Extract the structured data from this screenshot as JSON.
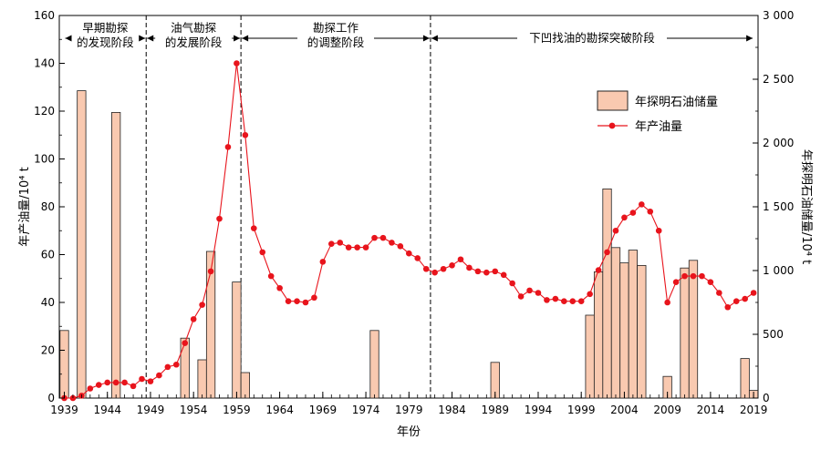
{
  "chart_data": {
    "type": "bar+line",
    "xlabel": "年份",
    "y_left_label": "年产油量/10⁴ t",
    "y_right_label": "年探明石油储量/10⁴ t",
    "y_left_lim": [
      0,
      160
    ],
    "y_right_lim": [
      0,
      3000
    ],
    "x_lim": [
      1939,
      2019
    ],
    "x_ticks": [
      "1939",
      "1944",
      "1949",
      "1954",
      "1959",
      "1964",
      "1969",
      "1974",
      "1979",
      "1984",
      "1989",
      "1994",
      "1999",
      "2004",
      "2009",
      "2014",
      "2019"
    ],
    "y_left_ticks": [
      "0",
      "20",
      "40",
      "60",
      "80",
      "100",
      "120",
      "140",
      "160"
    ],
    "y_right_ticks": [
      "0",
      "500",
      "1 000",
      "1 500",
      "2 000",
      "2 500",
      "3 000"
    ],
    "legend": {
      "position": "top-right",
      "bar_label": "年探明石油储量",
      "line_label": "年产油量"
    },
    "colors": {
      "bar_fill": "#f9c9b0",
      "bar_stroke": "#222222",
      "line": "#e8141c"
    },
    "phases": [
      {
        "line1": "早期勘探",
        "line2": "的发现阶段",
        "from": 1939,
        "to": 1948.5
      },
      {
        "line1": "油气勘探",
        "line2": "的发展阶段",
        "from": 1948.5,
        "to": 1959.5
      },
      {
        "line1": "勘探工作",
        "line2": "的调整阶段",
        "from": 1959.5,
        "to": 1981.5
      },
      {
        "line1": "下凹找油的勘探突破阶段",
        "line2": "",
        "from": 1981.5,
        "to": 2019
      }
    ],
    "phase_dividers": [
      1948.5,
      1959.5,
      1981.5
    ],
    "reserves_series": {
      "name": "年探明石油储量",
      "years": [
        1939,
        1941,
        1945,
        1953,
        1955,
        1956,
        1959,
        1960,
        1975,
        1989,
        2000,
        2001,
        2002,
        2003,
        2004,
        2005,
        2006,
        2009,
        2011,
        2012,
        2018,
        2019
      ],
      "values": [
        530,
        2410,
        2240,
        470,
        300,
        1150,
        910,
        200,
        530,
        280,
        650,
        990,
        1640,
        1180,
        1060,
        1160,
        1040,
        170,
        1020,
        1080,
        310,
        60
      ]
    },
    "production_series": {
      "name": "年产油量",
      "years": [
        1939,
        1940,
        1941,
        1942,
        1943,
        1944,
        1945,
        1946,
        1947,
        1948,
        1949,
        1950,
        1951,
        1952,
        1953,
        1954,
        1955,
        1956,
        1957,
        1958,
        1959,
        1960,
        1961,
        1962,
        1963,
        1964,
        1965,
        1966,
        1967,
        1968,
        1969,
        1970,
        1971,
        1972,
        1973,
        1974,
        1975,
        1976,
        1977,
        1978,
        1979,
        1980,
        1981,
        1982,
        1983,
        1984,
        1985,
        1986,
        1987,
        1988,
        1989,
        1990,
        1991,
        1992,
        1993,
        1994,
        1995,
        1996,
        1997,
        1998,
        1999,
        2000,
        2001,
        2002,
        2003,
        2004,
        2005,
        2006,
        2007,
        2008,
        2009,
        2010,
        2011,
        2012,
        2013,
        2014,
        2015,
        2016,
        2017,
        2018,
        2019
      ],
      "values": [
        0,
        0,
        1,
        4,
        5.5,
        6.5,
        6.5,
        6.5,
        5,
        8,
        7,
        9.5,
        13,
        14,
        23,
        33,
        39,
        53,
        75,
        105,
        140,
        110,
        71,
        61,
        51,
        46,
        40.5,
        40.5,
        40,
        42,
        57,
        64.5,
        65,
        63,
        63,
        63,
        67,
        67,
        65,
        63.5,
        60.5,
        58.5,
        54,
        52.5,
        54,
        55.5,
        58,
        54.5,
        53,
        52.5,
        53,
        51.5,
        48,
        42.5,
        45,
        44,
        41,
        41.5,
        40.5,
        40.5,
        40.5,
        43.5,
        53.5,
        61,
        70,
        75.5,
        77.5,
        81,
        78,
        70,
        40,
        48.5,
        51,
        51,
        51,
        48.5,
        44,
        38,
        40.5,
        41.5,
        44
      ]
    }
  }
}
